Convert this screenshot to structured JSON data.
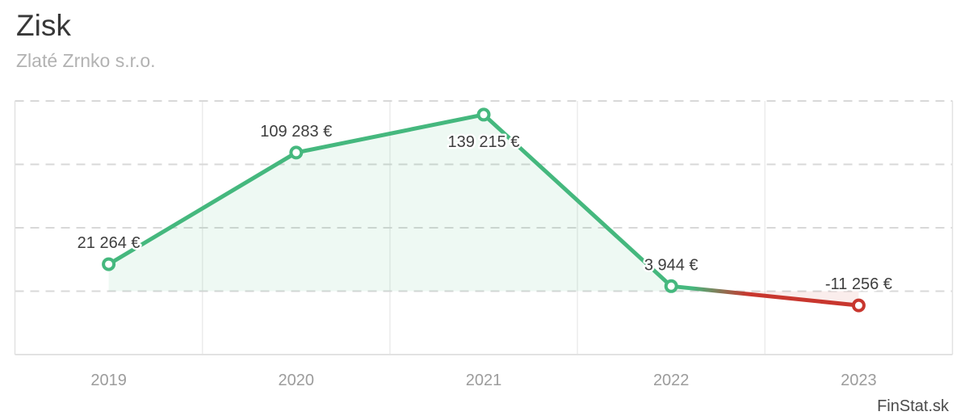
{
  "header": {
    "title": "Zisk",
    "subtitle": "Zlaté Zrnko s.r.o."
  },
  "watermark": "FinStat.sk",
  "chart_data": {
    "type": "line",
    "title": "Zisk",
    "subtitle": "Zlaté Zrnko s.r.o.",
    "categories": [
      "2019",
      "2020",
      "2021",
      "2022",
      "2023"
    ],
    "series": [
      {
        "name": "Zisk",
        "values": [
          21264,
          109283,
          139215,
          3944,
          -11256
        ]
      }
    ],
    "point_labels": [
      "21 264 €",
      "109 283 €",
      "139 215 €",
      "3 944 €",
      "-11 256 €"
    ],
    "label_positions": [
      "above",
      "above",
      "below",
      "above",
      "above"
    ],
    "ylim": [
      -50000,
      150000
    ],
    "grid_step": 50000,
    "grid": true,
    "legend": false,
    "y_axis_labels_shown": false,
    "colors": {
      "positive": "#45b87e",
      "negative": "#c8362e",
      "area_positive": "rgba(69,184,126,0.09)",
      "area_negative": "rgba(200,54,46,0.09)",
      "grid_dashed": "#d8d8d8",
      "grid_solid": "#ececec",
      "border": "#e2e2e2",
      "point_label": "#3e3e3e",
      "axis_label": "#9c9c9c"
    }
  }
}
